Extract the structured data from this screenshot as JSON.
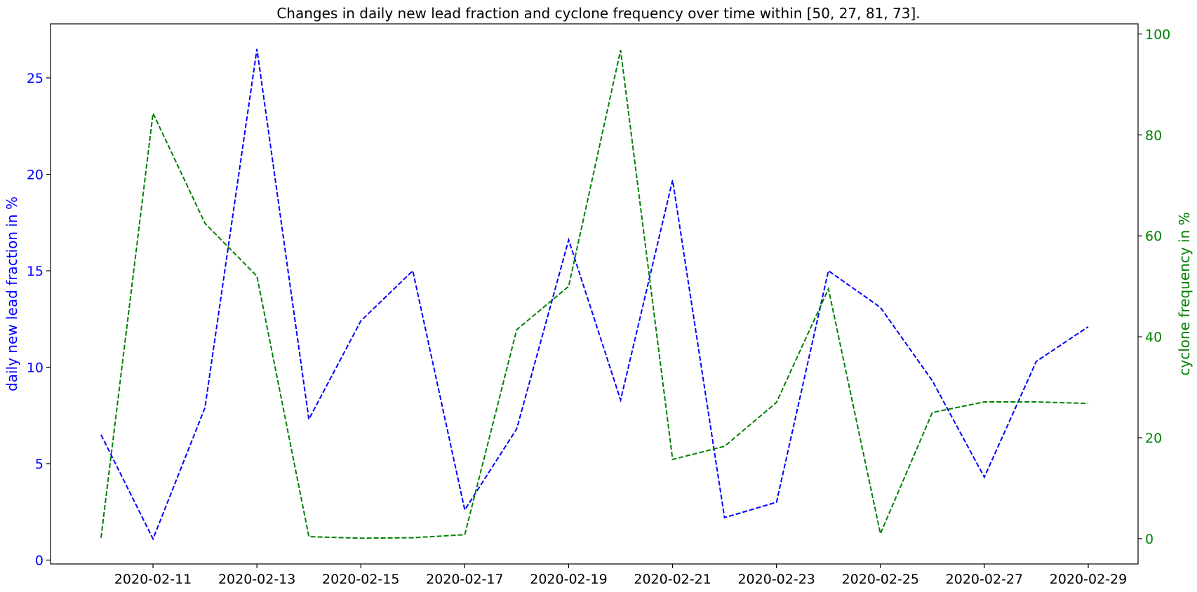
{
  "chart_data": {
    "type": "line",
    "title": "Changes in daily new lead fraction and cyclone frequency over time within [50, 27, 81, 73].",
    "xlabel": "",
    "x": [
      "2020-02-10",
      "2020-02-11",
      "2020-02-12",
      "2020-02-13",
      "2020-02-14",
      "2020-02-15",
      "2020-02-16",
      "2020-02-17",
      "2020-02-18",
      "2020-02-19",
      "2020-02-20",
      "2020-02-21",
      "2020-02-22",
      "2020-02-23",
      "2020-02-24",
      "2020-02-25",
      "2020-02-26",
      "2020-02-27",
      "2020-02-28",
      "2020-02-29"
    ],
    "x_tick_labels": [
      "2020-02-11",
      "2020-02-13",
      "2020-02-15",
      "2020-02-17",
      "2020-02-19",
      "2020-02-21",
      "2020-02-23",
      "2020-02-25",
      "2020-02-27",
      "2020-02-29"
    ],
    "left_axis": {
      "label": "daily new lead fraction in %",
      "color": "#0000ff",
      "ylim": [
        -0.2,
        27.8
      ],
      "ticks": [
        0,
        5,
        10,
        15,
        20,
        25
      ]
    },
    "right_axis": {
      "label": "cyclone frequency in %",
      "color": "#008000",
      "ylim": [
        -5,
        102
      ],
      "ticks": [
        0,
        20,
        40,
        60,
        80,
        100
      ]
    },
    "series": [
      {
        "axis": "left",
        "color": "#0000ff",
        "style": "dashed",
        "values": [
          6.5,
          1.1,
          7.9,
          26.5,
          7.3,
          12.4,
          15.0,
          2.6,
          6.8,
          16.6,
          8.3,
          19.7,
          2.2,
          3.0,
          15.0,
          13.1,
          9.3,
          4.3,
          10.3,
          12.1
        ]
      },
      {
        "axis": "right",
        "color": "#008000",
        "style": "dashed",
        "values": [
          0.2,
          84.3,
          62.5,
          52.0,
          0.4,
          0.1,
          0.2,
          0.8,
          41.4,
          50.0,
          96.8,
          15.7,
          18.3,
          27.0,
          49.5,
          1.0,
          25.0,
          27.1,
          27.1,
          26.8
        ]
      }
    ],
    "grid": false,
    "legend": "none"
  }
}
